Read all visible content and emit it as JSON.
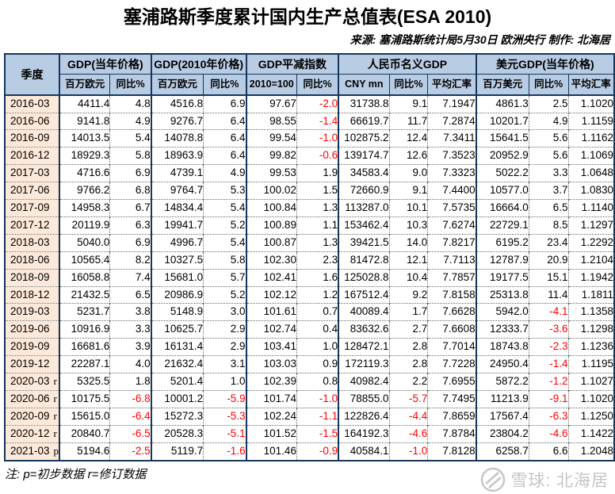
{
  "title": "塞浦路斯季度累计国内生产总值表(ESA 2010)",
  "source_line": "来源: 塞浦路斯统计局5月30日 欧洲央行 制作: 北海居",
  "note": "注: p=初步数据 r=修订数据",
  "watermark": {
    "icon": "xueqiu-snowball-logo",
    "text": "雪球: 北海居"
  },
  "colors": {
    "header_bg": "#B8CCE4",
    "quarter_bg": "#FDE9D9",
    "border": "#16365C",
    "negative": "#FF0000"
  },
  "table": {
    "quarter_header": "季度",
    "groups": [
      {
        "label": "GDP(当年价格)",
        "subs": [
          "百万欧元",
          "同比%"
        ]
      },
      {
        "label": "GDP(2010年价格)",
        "subs": [
          "百万欧元",
          "同比%"
        ]
      },
      {
        "label": "GDP平减指数",
        "subs": [
          "2010=100",
          "同比%"
        ]
      },
      {
        "label": "人民币名义GDP",
        "subs": [
          "CNY mn",
          "同比%",
          "平均汇率"
        ]
      },
      {
        "label": "美元GDP(当年价格)",
        "subs": [
          "百万美元",
          "同比%",
          "平均汇率"
        ]
      }
    ],
    "rows": [
      {
        "q": "2016-03",
        "s": "",
        "v": [
          "4411.4",
          "4.8",
          "4516.8",
          "6.9",
          "97.67",
          "-2.0",
          "31738.8",
          "9.1",
          "7.1947",
          "4861.3",
          "2.5",
          "1.1020"
        ]
      },
      {
        "q": "2016-06",
        "s": "",
        "v": [
          "9141.8",
          "4.9",
          "9276.7",
          "6.4",
          "98.55",
          "-1.4",
          "66619.7",
          "11.7",
          "7.2874",
          "10201.7",
          "4.9",
          "1.1159"
        ]
      },
      {
        "q": "2016-09",
        "s": "",
        "v": [
          "14013.5",
          "5.4",
          "14078.8",
          "6.4",
          "99.54",
          "-1.0",
          "102875.2",
          "12.4",
          "7.3411",
          "15641.5",
          "5.6",
          "1.1162"
        ]
      },
      {
        "q": "2016-12",
        "s": "",
        "v": [
          "18929.3",
          "5.8",
          "18963.9",
          "6.4",
          "99.82",
          "-0.6",
          "139174.7",
          "12.6",
          "7.3523",
          "20952.9",
          "5.6",
          "1.1069"
        ]
      },
      {
        "q": "2017-03",
        "s": "",
        "v": [
          "4716.6",
          "6.9",
          "4739.1",
          "4.9",
          "99.53",
          "1.9",
          "34583.4",
          "9.0",
          "7.3323",
          "5022.2",
          "3.3",
          "1.0648"
        ]
      },
      {
        "q": "2017-06",
        "s": "",
        "v": [
          "9766.2",
          "6.8",
          "9764.7",
          "5.3",
          "100.02",
          "1.5",
          "72660.9",
          "9.1",
          "7.4400",
          "10577.0",
          "3.7",
          "1.0830"
        ]
      },
      {
        "q": "2017-09",
        "s": "",
        "v": [
          "14958.3",
          "6.7",
          "14834.4",
          "5.4",
          "100.84",
          "1.3",
          "113287.0",
          "10.1",
          "7.5735",
          "16664.0",
          "6.5",
          "1.1140"
        ]
      },
      {
        "q": "2017-12",
        "s": "",
        "v": [
          "20119.9",
          "6.3",
          "19941.7",
          "5.2",
          "100.89",
          "1.1",
          "153462.4",
          "10.3",
          "7.6274",
          "22729.1",
          "8.5",
          "1.1297"
        ]
      },
      {
        "q": "2018-03",
        "s": "",
        "v": [
          "5040.0",
          "6.9",
          "4996.7",
          "5.4",
          "100.87",
          "1.3",
          "39421.5",
          "14.0",
          "7.8217",
          "6195.2",
          "23.4",
          "1.2292"
        ]
      },
      {
        "q": "2018-06",
        "s": "",
        "v": [
          "10565.4",
          "8.2",
          "10327.5",
          "5.8",
          "102.30",
          "2.3",
          "81472.8",
          "12.1",
          "7.7113",
          "12787.9",
          "20.9",
          "1.2104"
        ]
      },
      {
        "q": "2018-09",
        "s": "",
        "v": [
          "16058.8",
          "7.4",
          "15681.0",
          "5.7",
          "102.41",
          "1.6",
          "125028.8",
          "10.4",
          "7.7857",
          "19177.5",
          "15.1",
          "1.1942"
        ]
      },
      {
        "q": "2018-12",
        "s": "",
        "v": [
          "21432.5",
          "6.5",
          "20986.9",
          "5.2",
          "102.12",
          "1.2",
          "167512.4",
          "9.2",
          "7.8158",
          "25313.8",
          "11.4",
          "1.1811"
        ]
      },
      {
        "q": "2019-03",
        "s": "",
        "v": [
          "5231.7",
          "3.8",
          "5148.9",
          "3.0",
          "101.61",
          "0.7",
          "40089.4",
          "1.7",
          "7.6628",
          "5942.0",
          "-4.1",
          "1.1358"
        ]
      },
      {
        "q": "2019-06",
        "s": "",
        "v": [
          "10916.9",
          "3.3",
          "10625.7",
          "2.9",
          "102.74",
          "0.4",
          "83632.6",
          "2.7",
          "7.6608",
          "12333.7",
          "-3.6",
          "1.1298"
        ]
      },
      {
        "q": "2019-09",
        "s": "",
        "v": [
          "16681.6",
          "3.9",
          "16131.4",
          "2.9",
          "103.41",
          "1.0",
          "128472.1",
          "2.8",
          "7.7014",
          "18743.8",
          "-2.3",
          "1.1236"
        ]
      },
      {
        "q": "2019-12",
        "s": "",
        "v": [
          "22287.1",
          "4.0",
          "21632.4",
          "3.1",
          "103.03",
          "0.9",
          "172119.3",
          "2.8",
          "7.7228",
          "24950.4",
          "-1.4",
          "1.1195"
        ]
      },
      {
        "q": "2020-03",
        "s": "r",
        "v": [
          "5325.5",
          "1.8",
          "5201.4",
          "1.0",
          "102.39",
          "0.8",
          "40982.4",
          "2.2",
          "7.6955",
          "5872.2",
          "-1.2",
          "1.1027"
        ]
      },
      {
        "q": "2020-06",
        "s": "r",
        "v": [
          "10175.5",
          "-6.8",
          "10001.2",
          "-5.9",
          "101.74",
          "-1.0",
          "78855.0",
          "-5.7",
          "7.7495",
          "11213.9",
          "-9.1",
          "1.1020"
        ]
      },
      {
        "q": "2020-09",
        "s": "r",
        "v": [
          "15615.0",
          "-6.4",
          "15272.3",
          "-5.3",
          "102.24",
          "-1.1",
          "122826.4",
          "-4.4",
          "7.8659",
          "17567.4",
          "-6.3",
          "1.1250"
        ]
      },
      {
        "q": "2020-12",
        "s": "r",
        "v": [
          "20840.7",
          "-6.5",
          "20528.3",
          "-5.1",
          "101.52",
          "-1.5",
          "164192.3",
          "-4.6",
          "7.8784",
          "23804.2",
          "-4.6",
          "1.1422"
        ]
      },
      {
        "q": "2021-03",
        "s": "p",
        "v": [
          "5194.6",
          "-2.5",
          "5119.7",
          "-1.6",
          "101.46",
          "-0.9",
          "40584.1",
          "-1.0",
          "7.8128",
          "6258.7",
          "6.6",
          "1.2048"
        ]
      }
    ]
  }
}
